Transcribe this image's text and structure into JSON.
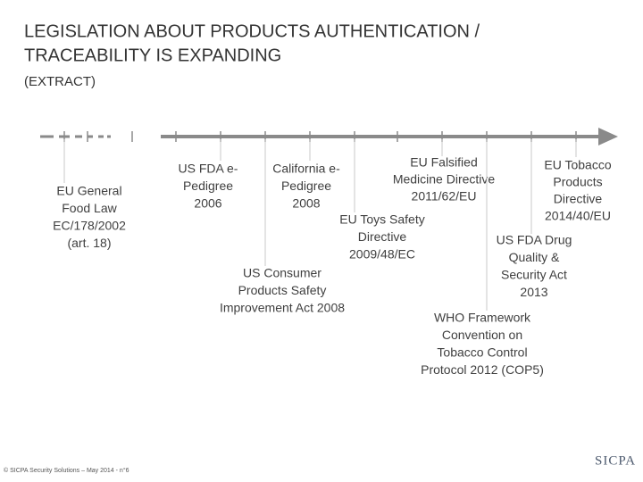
{
  "header": {
    "title_lines": [
      "LEGISLATION ABOUT PRODUCTS AUTHENTICATION /",
      "TRACEABILITY IS EXPANDING"
    ],
    "subtitle": "(EXTRACT)"
  },
  "events": [
    {
      "lines": [
        "EU General",
        "Food Law",
        "EC/178/2002",
        "(art. 18)"
      ]
    },
    {
      "lines": [
        "US FDA e-",
        "Pedigree",
        "2006"
      ]
    },
    {
      "lines": [
        "California e-",
        "Pedigree",
        "2008"
      ]
    },
    {
      "lines": [
        "EU Falsified",
        "Medicine Directive",
        "2011/62/EU"
      ]
    },
    {
      "lines": [
        "EU Toys Safety",
        "Directive",
        "2009/48/EC"
      ]
    },
    {
      "lines": [
        "US Consumer",
        "Products Safety",
        "Improvement Act 2008"
      ]
    },
    {
      "lines": [
        "EU Tobacco",
        "Products",
        "Directive",
        "2014/40/EU"
      ]
    },
    {
      "lines": [
        "US FDA Drug",
        "Quality &",
        "Security Act",
        "2013"
      ]
    },
    {
      "lines": [
        "WHO Framework",
        "Convention on",
        "Tobacco Control",
        "Protocol 2012 (COP5)"
      ]
    }
  ],
  "footer": {
    "copyright": "© SICPA Security Solutions – May 2014 - n°6",
    "logo": "SICPA"
  }
}
